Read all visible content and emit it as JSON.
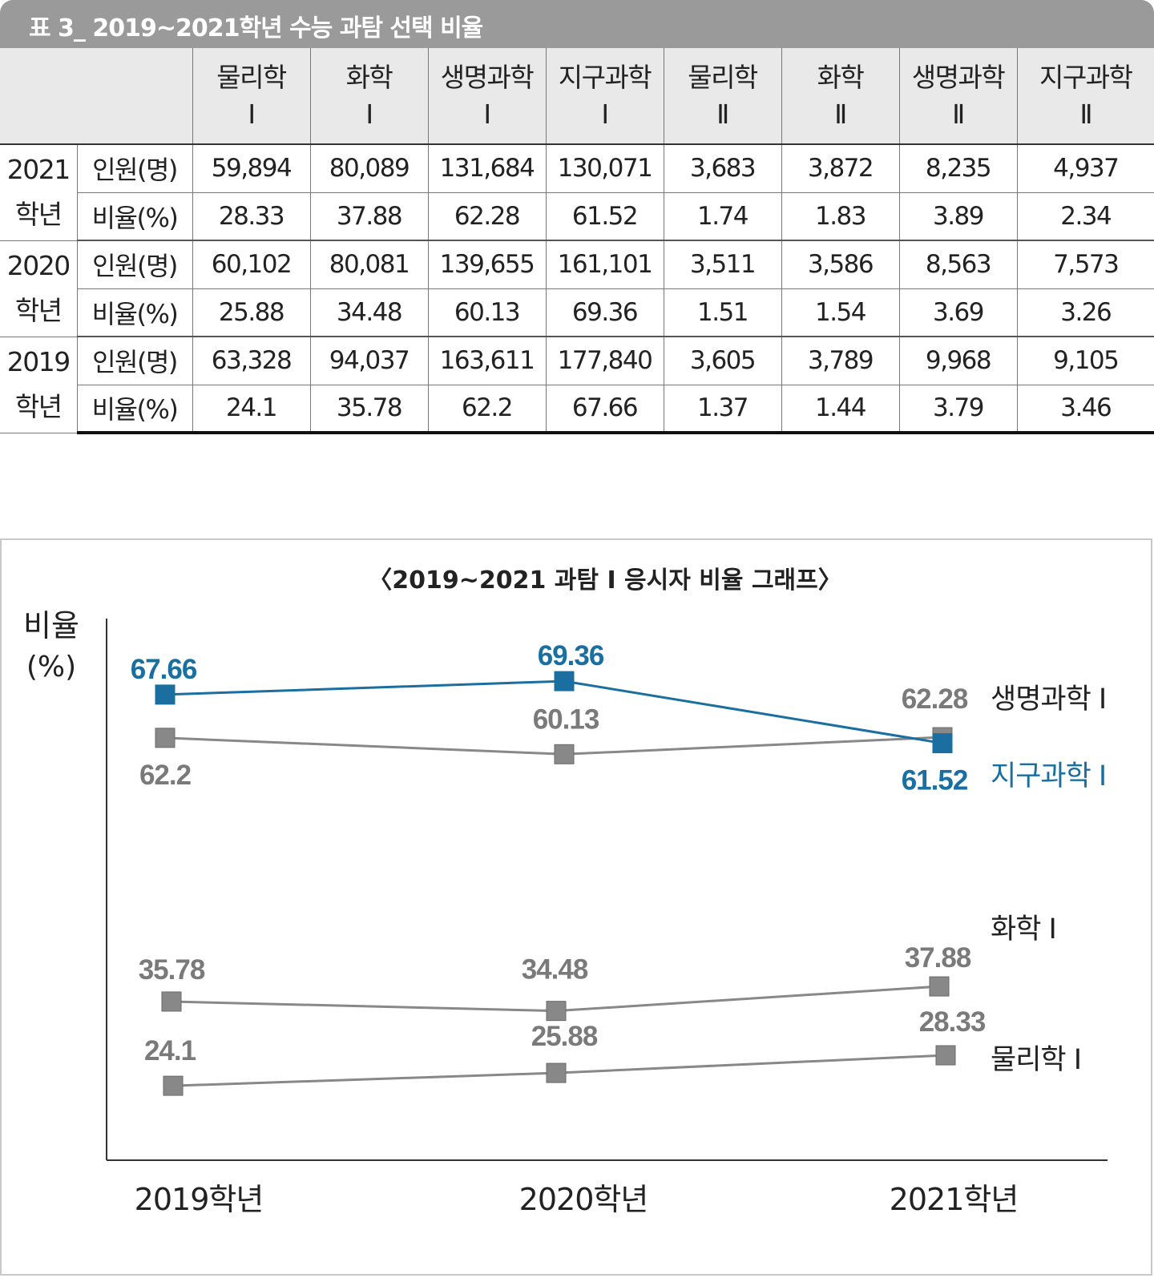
{
  "table_title": "표 3_ 2019~2021학년 수능 과탐 선택 비율",
  "table": {
    "headers": [
      {
        "line1": "물리학",
        "line2": "Ⅰ"
      },
      {
        "line1": "화학",
        "line2": "Ⅰ"
      },
      {
        "line1": "생명과학",
        "line2": "Ⅰ"
      },
      {
        "line1": "지구과학",
        "line2": "Ⅰ"
      },
      {
        "line1": "물리학",
        "line2": "Ⅱ"
      },
      {
        "line1": "화학",
        "line2": "Ⅱ"
      },
      {
        "line1": "생명과학",
        "line2": "Ⅱ"
      },
      {
        "line1": "지구과학",
        "line2": "Ⅱ"
      }
    ],
    "groups": [
      {
        "year": "2021",
        "suffix": "학년",
        "rows": [
          {
            "label": "인원(명)",
            "cells": [
              "59,894",
              "80,089",
              "131,684",
              "130,071",
              "3,683",
              "3,872",
              "8,235",
              "4,937"
            ]
          },
          {
            "label": "비율(%)",
            "cells": [
              "28.33",
              "37.88",
              "62.28",
              "61.52",
              "1.74",
              "1.83",
              "3.89",
              "2.34"
            ]
          }
        ]
      },
      {
        "year": "2020",
        "suffix": "학년",
        "rows": [
          {
            "label": "인원(명)",
            "cells": [
              "60,102",
              "80,081",
              "139,655",
              "161,101",
              "3,511",
              "3,586",
              "8,563",
              "7,573"
            ]
          },
          {
            "label": "비율(%)",
            "cells": [
              "25.88",
              "34.48",
              "60.13",
              "69.36",
              "1.51",
              "1.54",
              "3.69",
              "3.26"
            ]
          }
        ]
      },
      {
        "year": "2019",
        "suffix": "학년",
        "rows": [
          {
            "label": "인원(명)",
            "cells": [
              "63,328",
              "94,037",
              "163,611",
              "177,840",
              "3,605",
              "3,789",
              "9,968",
              "9,105"
            ]
          },
          {
            "label": "비율(%)",
            "cells": [
              "24.1",
              "35.78",
              "62.2",
              "67.66",
              "1.37",
              "1.44",
              "3.79",
              "3.46"
            ]
          }
        ]
      }
    ]
  },
  "chart_data": {
    "type": "line",
    "title": "〈2019~2021 과탐 Ⅰ 응시자 비율 그래프〉",
    "ylabel_line1": "비율",
    "ylabel_line2": "(%)",
    "xlabel": "",
    "categories": [
      "2019학년",
      "2020학년",
      "2021학년"
    ],
    "ylim": [
      20,
      72
    ],
    "grid": false,
    "series": [
      {
        "name": "지구과학 Ⅰ",
        "color": "#1a6fa0",
        "values": [
          67.66,
          69.36,
          61.52
        ],
        "labels": [
          "67.66",
          "69.36",
          "61.52"
        ]
      },
      {
        "name": "생명과학 Ⅰ",
        "color": "#888888",
        "values": [
          62.2,
          60.13,
          62.28
        ],
        "labels": [
          "62.2",
          "60.13",
          "62.28"
        ]
      },
      {
        "name": "화학 Ⅰ",
        "color": "#888888",
        "values": [
          35.78,
          34.48,
          37.88
        ],
        "labels": [
          "35.78",
          "34.48",
          "37.88"
        ]
      },
      {
        "name": "물리학 Ⅰ",
        "color": "#888888",
        "values": [
          24.1,
          25.88,
          28.33
        ],
        "labels": [
          "24.1",
          "25.88",
          "28.33"
        ]
      }
    ],
    "colors": {
      "value_label_gray": "#7a7a7a",
      "series_name_black": "#222222",
      "axis": "#333333"
    }
  }
}
